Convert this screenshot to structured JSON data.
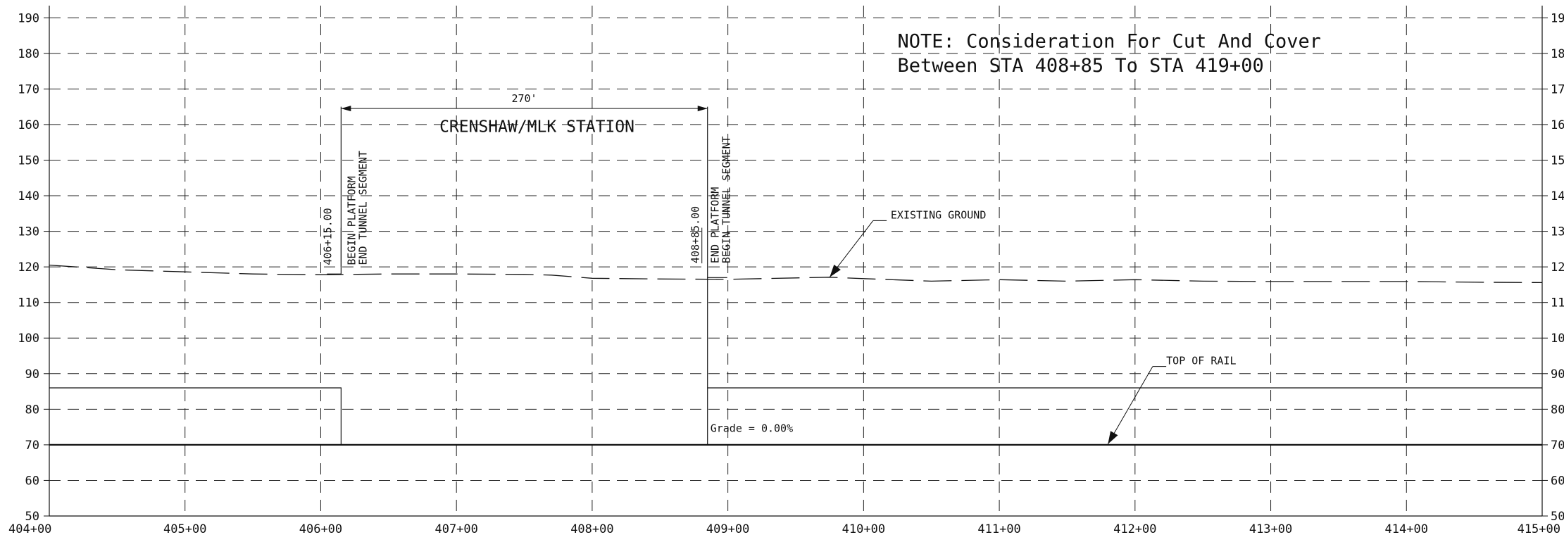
{
  "chart_data": {
    "type": "line",
    "x_axis": {
      "min": 404,
      "max": 415,
      "ticks": [
        {
          "v": 404,
          "l": "404+00"
        },
        {
          "v": 405,
          "l": "405+00"
        },
        {
          "v": 406,
          "l": "406+00"
        },
        {
          "v": 407,
          "l": "407+00"
        },
        {
          "v": 408,
          "l": "408+00"
        },
        {
          "v": 409,
          "l": "409+00"
        },
        {
          "v": 410,
          "l": "410+00"
        },
        {
          "v": 411,
          "l": "411+00"
        },
        {
          "v": 412,
          "l": "412+00"
        },
        {
          "v": 413,
          "l": "413+00"
        },
        {
          "v": 414,
          "l": "414+00"
        },
        {
          "v": 415,
          "l": "415+00"
        }
      ]
    },
    "y_axis": {
      "min": 50,
      "max": 195,
      "ticks": [
        50,
        60,
        70,
        80,
        90,
        100,
        110,
        120,
        130,
        140,
        150,
        160,
        170,
        180,
        190
      ]
    },
    "grid": true,
    "series": [
      {
        "name": "EXISTING GROUND",
        "style": "dashed",
        "points": [
          [
            404.0,
            120.5
          ],
          [
            404.5,
            119.2
          ],
          [
            405.0,
            118.6
          ],
          [
            405.5,
            118.0
          ],
          [
            406.0,
            117.8
          ],
          [
            406.5,
            118.0
          ],
          [
            407.0,
            118.0
          ],
          [
            407.5,
            117.9
          ],
          [
            407.7,
            117.7
          ],
          [
            408.0,
            116.8
          ],
          [
            408.5,
            116.6
          ],
          [
            409.0,
            116.5
          ],
          [
            409.5,
            116.9
          ],
          [
            409.75,
            117.1
          ],
          [
            410.0,
            116.7
          ],
          [
            410.5,
            116.0
          ],
          [
            411.0,
            116.4
          ],
          [
            411.5,
            116.0
          ],
          [
            412.0,
            116.4
          ],
          [
            412.5,
            116.0
          ],
          [
            413.0,
            115.9
          ],
          [
            413.5,
            115.9
          ],
          [
            414.0,
            115.9
          ],
          [
            414.5,
            115.7
          ],
          [
            415.0,
            115.6
          ]
        ]
      },
      {
        "name": "TOP OF RAIL",
        "style": "solid",
        "points": [
          [
            404.0,
            70
          ],
          [
            415.0,
            70
          ]
        ]
      }
    ],
    "structures": {
      "platform_start": 406.15,
      "platform_end": 408.85,
      "platform_top": 118,
      "box_top_left": 86,
      "box_top_right": 86,
      "end_top_right": 117
    },
    "annotations": {
      "station_name": "CRENSHAW/MLK STATION",
      "platform_length": "270'",
      "grade": "Grade = 0.00%",
      "begin_station": "406+15.00",
      "begin_line1": "BEGIN PLATFORM",
      "begin_line2": "END TUNNEL SEGMENT",
      "end_station": "408+85.00",
      "end_line1": "END PLATFORM",
      "end_line2": "BEGIN TUNNEL SEGMENT",
      "existing_ground_label": "EXISTING GROUND",
      "top_of_rail_label": "TOP OF RAIL",
      "note_line1": "NOTE: Consideration For Cut And Cover",
      "note_line2": "Between STA 408+85 To STA 419+00"
    }
  }
}
